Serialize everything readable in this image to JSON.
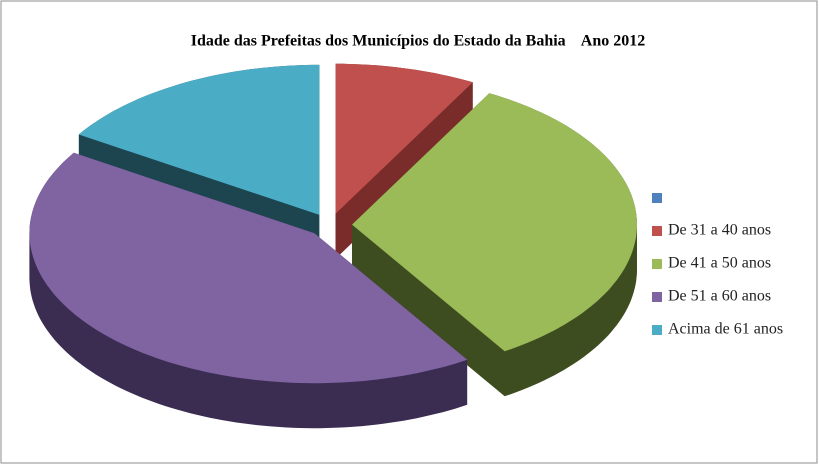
{
  "chart_data": {
    "type": "pie",
    "title": "Idade das Prefeitas dos Municípios do Estado da Bahia    Ano 2012",
    "categories": [
      null,
      "De 31 a 40 anos",
      "De 41 a 50 anos",
      "De 51 a 60 anos",
      "Acima de 61 anos"
    ],
    "values": [
      0,
      8,
      33,
      43,
      16
    ],
    "colors": [
      "#4f81bd",
      "#c0504d",
      "#9bbb59",
      "#8064a2",
      "#4bacc6"
    ],
    "side_colors": [
      "#2c4d75",
      "#7a2c2a",
      "#3e4d20",
      "#3b2c52",
      "#1d4550"
    ],
    "legend": "right"
  }
}
